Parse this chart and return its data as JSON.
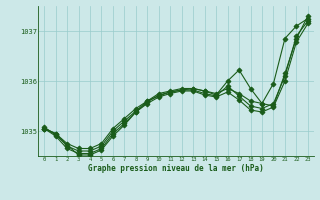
{
  "xlabel": "Graphe pression niveau de la mer (hPa)",
  "ylim": [
    1034.5,
    1037.5
  ],
  "xlim": [
    0,
    23
  ],
  "yticks": [
    1035,
    1036,
    1037
  ],
  "xticks": [
    0,
    1,
    2,
    3,
    4,
    5,
    6,
    7,
    8,
    9,
    10,
    11,
    12,
    13,
    14,
    15,
    16,
    17,
    18,
    19,
    20,
    21,
    22,
    23
  ],
  "background_color": "#cce8e8",
  "grid_color": "#99cccc",
  "line_color": "#1a5c1a",
  "series": [
    {
      "x": [
        0,
        1,
        2,
        3,
        4,
        5,
        6,
        7,
        8,
        9,
        10,
        11,
        12,
        13,
        14,
        15,
        16,
        17,
        18,
        19,
        20,
        21,
        22,
        23
      ],
      "y": [
        1035.05,
        1034.95,
        1034.75,
        1034.65,
        1034.65,
        1034.75,
        1035.05,
        1035.25,
        1035.45,
        1035.6,
        1035.75,
        1035.8,
        1035.85,
        1035.85,
        1035.8,
        1035.75,
        1035.85,
        1035.75,
        1035.6,
        1035.55,
        1035.95,
        1036.85,
        1037.1,
        1037.25
      ]
    },
    {
      "x": [
        0,
        1,
        2,
        3,
        4,
        5,
        6,
        7,
        8,
        9,
        10,
        11,
        12,
        13,
        14,
        15,
        16,
        17,
        18,
        19,
        20,
        21,
        22,
        23
      ],
      "y": [
        1035.05,
        1034.95,
        1034.7,
        1034.6,
        1034.6,
        1034.7,
        1035.0,
        1035.2,
        1035.4,
        1035.6,
        1035.7,
        1035.78,
        1035.82,
        1035.82,
        1035.75,
        1035.7,
        1035.9,
        1035.7,
        1035.5,
        1035.45,
        1035.55,
        1036.1,
        1036.9,
        1037.2
      ]
    },
    {
      "x": [
        0,
        1,
        2,
        3,
        4,
        5,
        6,
        7,
        8,
        9,
        10,
        11,
        12,
        13,
        14,
        15,
        16,
        17,
        18,
        19,
        20,
        21,
        22,
        23
      ],
      "y": [
        1035.05,
        1034.9,
        1034.65,
        1034.55,
        1034.55,
        1034.65,
        1034.95,
        1035.15,
        1035.38,
        1035.55,
        1035.68,
        1035.75,
        1035.8,
        1035.8,
        1035.72,
        1035.68,
        1035.78,
        1035.62,
        1035.42,
        1035.38,
        1035.48,
        1036.0,
        1036.78,
        1037.15
      ]
    },
    {
      "x": [
        0,
        1,
        3,
        4,
        5,
        6,
        7,
        8,
        9,
        10,
        11,
        12,
        13,
        14,
        15,
        16,
        17,
        18,
        19,
        20,
        21,
        22,
        23
      ],
      "y": [
        1035.08,
        1034.92,
        1034.52,
        1034.52,
        1034.62,
        1034.9,
        1035.12,
        1035.38,
        1035.58,
        1035.72,
        1035.78,
        1035.82,
        1035.85,
        1035.8,
        1035.72,
        1036.0,
        1036.22,
        1035.85,
        1035.55,
        1035.5,
        1036.15,
        1036.85,
        1037.3
      ]
    }
  ],
  "marker": "D",
  "markersize": 2.5,
  "linewidth": 0.8
}
